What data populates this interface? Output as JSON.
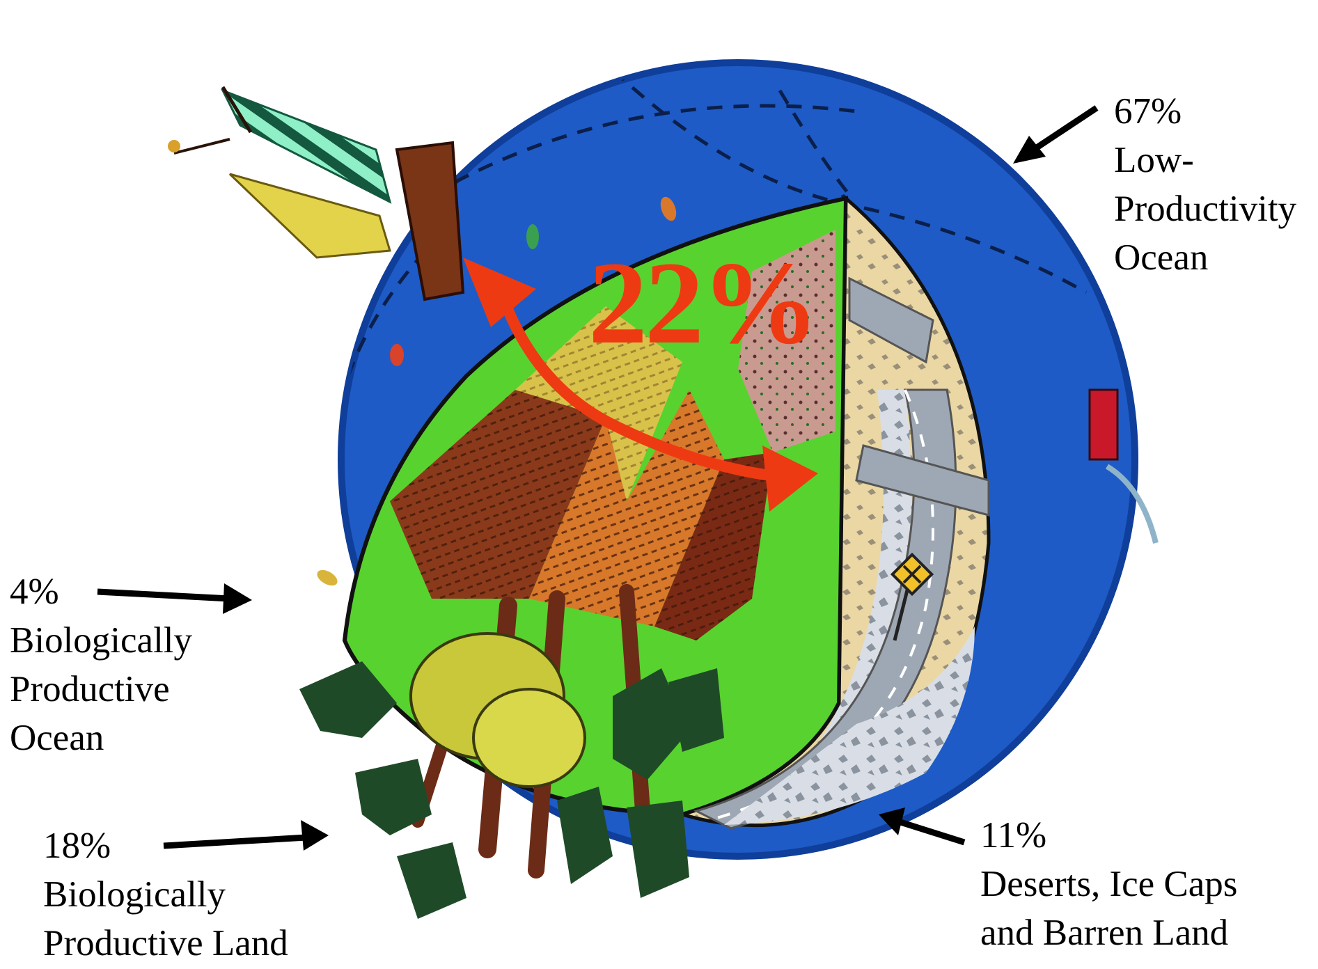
{
  "colors": {
    "ocean": "#1e5bc6",
    "ocean_dark": "#0f3f9a",
    "land_green": "#58d22f",
    "field_brown": "#8a3a1a",
    "field_orange": "#d8782a",
    "field_yellow": "#d9c24a",
    "desert": "#e8d39a",
    "road": "#9ea8b4",
    "rocks": "#cfd6e2",
    "tree_dark": "#1f4a28",
    "tree_trunk": "#6b2b16",
    "accent_red": "#ee3a12",
    "arrow": "#000000"
  },
  "center_label": "22%",
  "labels": {
    "low_productivity_ocean": {
      "percent": "67%",
      "lines": [
        "Low-",
        "Productivity",
        "Ocean"
      ]
    },
    "productive_ocean": {
      "percent": "4%",
      "lines": [
        "Biologically",
        "Productive",
        "Ocean"
      ]
    },
    "productive_land": {
      "percent": "18%",
      "lines": [
        "Biologically",
        "Productive Land"
      ]
    },
    "barren_land": {
      "percent": "11%",
      "lines": [
        "Deserts, Ice Caps",
        "and Barren Land"
      ]
    }
  },
  "icons": [
    "sailboat-icon",
    "fish-icon",
    "tree-icon",
    "road-sign-icon",
    "ship-icon"
  ]
}
